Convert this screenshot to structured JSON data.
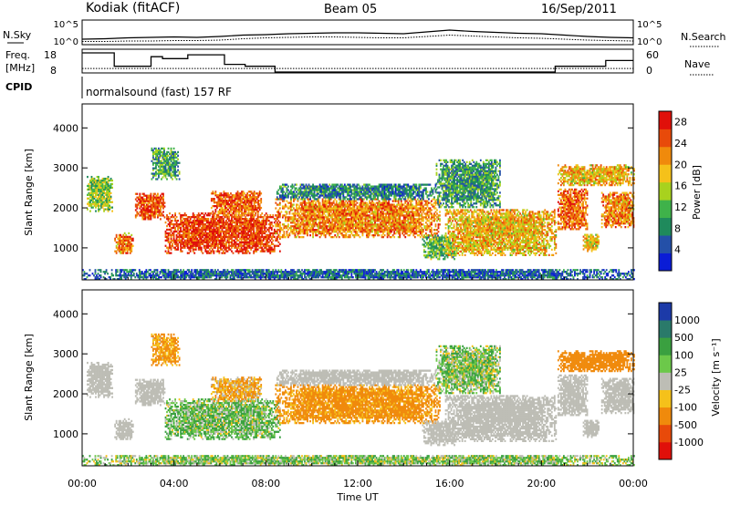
{
  "header": {
    "station": "Kodiak (fitACF)",
    "beam": "Beam 05",
    "date": "16/Sep/2011"
  },
  "side_labels": {
    "nsky": "N.Sky",
    "nsearch": "N.Search",
    "freq_line1": "Freq.",
    "freq_line2": "[MHz]",
    "nave": "Nave",
    "cpid": "CPID"
  },
  "cpid_text": "normalsound (fast) 157 RF",
  "colors": {
    "power": [
      "#0a1cd6",
      "#2450a8",
      "#1f8a5c",
      "#3fb24a",
      "#a8d21e",
      "#f5c11a",
      "#f08a0c",
      "#e84a0a",
      "#e0100a"
    ],
    "velocity": [
      "#e0100a",
      "#e84a0a",
      "#f08a0c",
      "#f5c11a",
      "#bdbdb5",
      "#6cc84a",
      "#3aa040",
      "#2a7a6a",
      "#1c3aa8"
    ],
    "ground_scatter": "#bdbdb5"
  },
  "chart_data": [
    {
      "type": "line",
      "name": "noise",
      "ylabel_left": "N.Sky",
      "ylabel_right": "N.Search",
      "yticks_left": [
        "10^5",
        "10^0"
      ],
      "yticks_right": [
        "10^5",
        "10^0"
      ],
      "x_hours": [
        0,
        1,
        2,
        3,
        4,
        5,
        6,
        7,
        8,
        9,
        10,
        11,
        12,
        13,
        14,
        15,
        16,
        17,
        18,
        19,
        20,
        21,
        22,
        23,
        24
      ],
      "series": [
        {
          "values": [
            1.0,
            1.1,
            1.3,
            1.4,
            1.5,
            1.4,
            1.6,
            1.9,
            2.0,
            2.2,
            2.3,
            2.4,
            2.4,
            2.3,
            2.2,
            2.6,
            3.0,
            2.7,
            2.5,
            2.3,
            2.2,
            1.9,
            1.6,
            1.4,
            1.3
          ]
        },
        {
          "values": [
            0.5,
            0.5,
            0.6,
            0.6,
            0.7,
            0.7,
            0.8,
            1.1,
            1.3,
            1.4,
            1.5,
            1.5,
            1.4,
            1.3,
            1.3,
            1.6,
            1.9,
            1.7,
            1.5,
            1.3,
            1.2,
            1.0,
            0.8,
            0.7,
            0.6
          ]
        }
      ]
    },
    {
      "type": "line",
      "name": "frequency-nave",
      "ylabel_left": "Freq. [MHz]",
      "ylabel_right": "Nave",
      "yticks_left": [
        "18",
        "8"
      ],
      "yticks_right": [
        "60",
        "0"
      ],
      "freq_steps": [
        [
          0.0,
          18
        ],
        [
          1.4,
          11
        ],
        [
          2.3,
          11
        ],
        [
          3.0,
          16
        ],
        [
          3.5,
          15
        ],
        [
          4.6,
          17
        ],
        [
          6.2,
          12
        ],
        [
          7.1,
          11
        ],
        [
          8.4,
          8
        ],
        [
          20.6,
          11
        ],
        [
          22.1,
          11
        ],
        [
          22.8,
          14
        ],
        [
          24.0,
          14
        ]
      ],
      "nave_level": 10
    },
    {
      "type": "heatmap",
      "name": "power",
      "ylabel": "Slant Range [km]",
      "yticks": [
        1000,
        2000,
        3000,
        4000
      ],
      "ylim": [
        200,
        4600
      ],
      "colorbar_label": "Power [dB]",
      "colorbar_ticks": [
        4,
        8,
        12,
        16,
        20,
        24,
        28
      ],
      "clim": [
        0,
        30
      ]
    },
    {
      "type": "heatmap",
      "name": "velocity",
      "ylabel": "Slant Range [km]",
      "yticks": [
        1000,
        2000,
        3000,
        4000
      ],
      "ylim": [
        200,
        4600
      ],
      "colorbar_label": "Velocity [m s⁻¹]",
      "colorbar_ticks": [
        "-1000",
        "-500",
        "-100",
        "-25",
        "25",
        "100",
        "500",
        "1000"
      ],
      "xlabel": "Time UT",
      "xticks": [
        "00:00",
        "04:00",
        "08:00",
        "12:00",
        "16:00",
        "20:00",
        "00:00"
      ],
      "xlim": [
        0,
        24
      ]
    }
  ],
  "echo_regions": [
    {
      "t0": 0.2,
      "t1": 1.3,
      "r0": 1900,
      "r1": 2800,
      "power": 14,
      "velocity": 0,
      "ground": true
    },
    {
      "t0": 1.4,
      "t1": 2.2,
      "r0": 850,
      "r1": 1350,
      "power": 22,
      "velocity": 0,
      "ground": true
    },
    {
      "t0": 2.3,
      "t1": 3.6,
      "r0": 1700,
      "r1": 2350,
      "power": 25,
      "velocity": 0,
      "ground": true
    },
    {
      "t0": 3.0,
      "t1": 4.2,
      "r0": 2700,
      "r1": 3500,
      "power": 10,
      "velocity": -150,
      "ground": false
    },
    {
      "t0": 3.6,
      "t1": 8.6,
      "r0": 850,
      "r1": 1850,
      "power": 26,
      "velocity": 80,
      "ground": false
    },
    {
      "t0": 5.6,
      "t1": 7.8,
      "r0": 1800,
      "r1": 2400,
      "power": 24,
      "velocity": -110,
      "ground": false
    },
    {
      "t0": 8.4,
      "t1": 15.6,
      "r0": 1250,
      "r1": 2200,
      "power": 22,
      "velocity": -180,
      "ground": false
    },
    {
      "t0": 8.4,
      "t1": 15.4,
      "r0": 2200,
      "r1": 2600,
      "power": 8,
      "velocity": 0,
      "ground": true
    },
    {
      "t0": 14.8,
      "t1": 16.3,
      "r0": 700,
      "r1": 1300,
      "power": 12,
      "velocity": 0,
      "ground": true
    },
    {
      "t0": 15.8,
      "t1": 20.6,
      "r0": 800,
      "r1": 1950,
      "power": 19,
      "velocity": 0,
      "ground": true
    },
    {
      "t0": 15.4,
      "t1": 18.2,
      "r0": 2000,
      "r1": 3200,
      "power": 10,
      "velocity": 60,
      "ground": false
    },
    {
      "t0": 20.7,
      "t1": 22.0,
      "r0": 1450,
      "r1": 2450,
      "power": 24,
      "velocity": 0,
      "ground": true
    },
    {
      "t0": 21.8,
      "t1": 22.5,
      "r0": 900,
      "r1": 1350,
      "power": 18,
      "velocity": 0,
      "ground": true
    },
    {
      "t0": 22.6,
      "t1": 24.0,
      "r0": 1500,
      "r1": 2400,
      "power": 22,
      "velocity": 0,
      "ground": true
    },
    {
      "t0": 20.7,
      "t1": 24.0,
      "r0": 2550,
      "r1": 3050,
      "power": 19,
      "velocity": -250,
      "ground": false
    },
    {
      "t0": 0.0,
      "t1": 24.0,
      "r0": 200,
      "r1": 450,
      "power": 6,
      "velocity": 60,
      "ground": false
    }
  ]
}
